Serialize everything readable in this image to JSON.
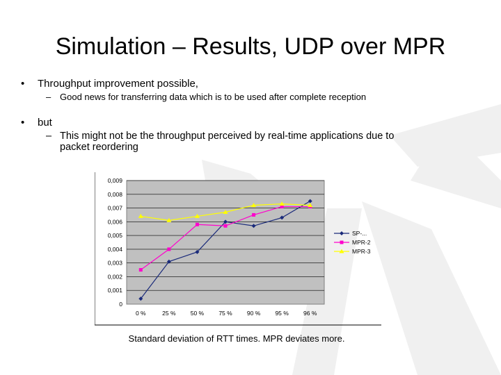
{
  "slide": {
    "title": "Simulation – Results, UDP over MPR",
    "bullet1": {
      "marker": "•",
      "text": "Throughput improvement possible,"
    },
    "sub1": {
      "marker": "–",
      "text": "Good news for transferring data which is to be used after complete reception"
    },
    "bullet2": {
      "marker": "•",
      "text": "but"
    },
    "sub2": {
      "marker": "–",
      "line1": "This might not be the throughput perceived by real-time applications due to",
      "line2": "packet reordering"
    },
    "caption": "Standard deviation of RTT times. MPR deviates more."
  },
  "chart_data": {
    "type": "line",
    "categories": [
      "0 %",
      "25 %",
      "50 %",
      "75 %",
      "90 %",
      "95 %",
      "96 %"
    ],
    "yticks": [
      "0",
      "0,001",
      "0,002",
      "0,003",
      "0,004",
      "0,005",
      "0,006",
      "0,007",
      "0,008",
      "0,009"
    ],
    "ylim": [
      0,
      0.009
    ],
    "grid": true,
    "legend_position": "right",
    "plot_background": "#c0c0c0",
    "series": [
      {
        "name": "SP-...",
        "color": "#1a2a7a",
        "marker": "diamond",
        "values": [
          0.0004,
          0.0031,
          0.0038,
          0.006,
          0.0057,
          0.0063,
          0.0075
        ]
      },
      {
        "name": "MPR-2",
        "color": "#ff00cc",
        "marker": "square",
        "values": [
          0.0025,
          0.004,
          0.0058,
          0.0057,
          0.0065,
          0.0071,
          0.0071
        ]
      },
      {
        "name": "MPR-3",
        "color": "#ffff00",
        "marker": "triangle",
        "values": [
          0.0064,
          0.0061,
          0.0064,
          0.0067,
          0.0072,
          0.0073,
          0.0072
        ]
      }
    ]
  }
}
